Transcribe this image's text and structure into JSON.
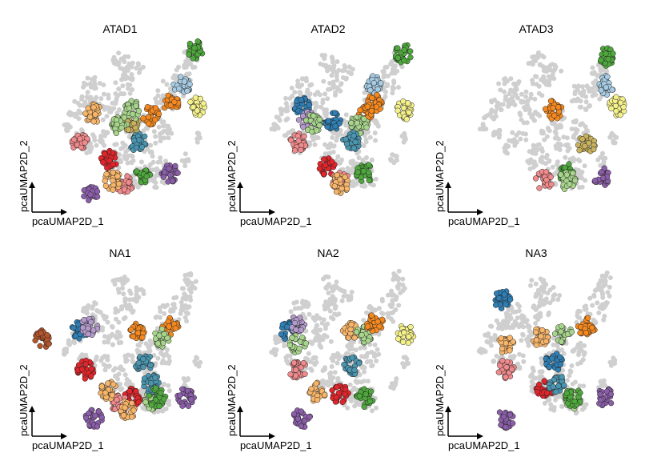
{
  "figure": {
    "type": "scatter",
    "embedding": "pcaUMAP2D",
    "xlabel": "pcaUMAP2D_1",
    "ylabel": "pcaUMAP2D_2",
    "background_color": "#cfcfcf",
    "grid": false,
    "legend": "none"
  },
  "palette": {
    "green": "#4fa83d",
    "light_green": "#a8d58c",
    "blue": "#2f7fb5",
    "light_blue": "#a6cbe3",
    "orange": "#f5891f",
    "light_orange": "#f7b56a",
    "red": "#e0252b",
    "pink": "#f08a8c",
    "purple": "#8a5ea8",
    "lavender": "#b49acb",
    "olive": "#c8b25e",
    "teal": "#4a95b0",
    "yellow": "#f4f08a",
    "brown": "#b5552c"
  },
  "chart_data": [
    {
      "type": "scatter",
      "title": "ATAD1",
      "xlabel": "pcaUMAP2D_1",
      "ylabel": "pcaUMAP2D_2",
      "highlight_groups": [
        {
          "color": "light_blue",
          "x": [
            0.78
          ],
          "y": [
            0.72
          ]
        },
        {
          "color": "green",
          "x": [
            0.85,
            0.58
          ],
          "y": [
            0.92,
            0.22
          ]
        },
        {
          "color": "orange",
          "x": [
            0.62,
            0.72
          ],
          "y": [
            0.55,
            0.62
          ]
        },
        {
          "color": "olive",
          "x": [
            0.52
          ],
          "y": [
            0.5
          ]
        },
        {
          "color": "light_green",
          "x": [
            0.52,
            0.45
          ],
          "y": [
            0.58,
            0.5
          ]
        },
        {
          "color": "pink",
          "x": [
            0.25,
            0.48
          ],
          "y": [
            0.4,
            0.16
          ]
        },
        {
          "color": "red",
          "x": [
            0.4
          ],
          "y": [
            0.3
          ]
        },
        {
          "color": "light_orange",
          "x": [
            0.42,
            0.32
          ],
          "y": [
            0.18,
            0.56
          ]
        },
        {
          "color": "teal",
          "x": [
            0.55
          ],
          "y": [
            0.4
          ]
        },
        {
          "color": "purple",
          "x": [
            0.72,
            0.3
          ],
          "y": [
            0.22,
            0.1
          ]
        },
        {
          "color": "yellow",
          "x": [
            0.86
          ],
          "y": [
            0.6
          ]
        }
      ]
    },
    {
      "type": "scatter",
      "title": "ATAD2",
      "xlabel": "pcaUMAP2D_1",
      "ylabel": "pcaUMAP2D_2",
      "highlight_groups": [
        {
          "color": "light_blue",
          "x": [
            0.7
          ],
          "y": [
            0.72
          ]
        },
        {
          "color": "orange",
          "x": [
            0.65,
            0.7
          ],
          "y": [
            0.56,
            0.62
          ]
        },
        {
          "color": "blue",
          "x": [
            0.32,
            0.48
          ],
          "y": [
            0.6,
            0.52
          ]
        },
        {
          "color": "lavender",
          "x": [
            0.35
          ],
          "y": [
            0.52
          ]
        },
        {
          "color": "light_green",
          "x": [
            0.38,
            0.62
          ],
          "y": [
            0.5,
            0.5
          ]
        },
        {
          "color": "green",
          "x": [
            0.65,
            0.85
          ],
          "y": [
            0.22,
            0.9
          ]
        },
        {
          "color": "red",
          "x": [
            0.45
          ],
          "y": [
            0.26
          ]
        },
        {
          "color": "pink",
          "x": [
            0.3,
            0.52
          ],
          "y": [
            0.4,
            0.18
          ]
        },
        {
          "color": "teal",
          "x": [
            0.58
          ],
          "y": [
            0.4
          ]
        },
        {
          "color": "light_orange",
          "x": [
            0.52
          ],
          "y": [
            0.16
          ]
        },
        {
          "color": "yellow",
          "x": [
            0.86
          ],
          "y": [
            0.58
          ]
        }
      ]
    },
    {
      "type": "scatter",
      "title": "ATAD3",
      "xlabel": "pcaUMAP2D_1",
      "ylabel": "pcaUMAP2D_2",
      "highlight_groups": [
        {
          "color": "light_blue",
          "x": [
            0.82
          ],
          "y": [
            0.72
          ]
        },
        {
          "color": "green",
          "x": [
            0.82,
            0.62
          ],
          "y": [
            0.88,
            0.22
          ]
        },
        {
          "color": "olive",
          "x": [
            0.72
          ],
          "y": [
            0.38
          ]
        },
        {
          "color": "pink",
          "x": [
            0.5
          ],
          "y": [
            0.18
          ]
        },
        {
          "color": "light_green",
          "x": [
            0.62
          ],
          "y": [
            0.18
          ]
        },
        {
          "color": "orange",
          "x": [
            0.55
          ],
          "y": [
            0.58
          ]
        },
        {
          "color": "purple",
          "x": [
            0.8
          ],
          "y": [
            0.2
          ]
        },
        {
          "color": "yellow",
          "x": [
            0.88
          ],
          "y": [
            0.6
          ]
        }
      ]
    },
    {
      "type": "scatter",
      "title": "NA1",
      "xlabel": "pcaUMAP2D_1",
      "ylabel": "pcaUMAP2D_2",
      "highlight_groups": [
        {
          "color": "blue",
          "x": [
            0.25
          ],
          "y": [
            0.6
          ]
        },
        {
          "color": "lavender",
          "x": [
            0.3
          ],
          "y": [
            0.62
          ]
        },
        {
          "color": "orange",
          "x": [
            0.55,
            0.72
          ],
          "y": [
            0.6,
            0.62
          ]
        },
        {
          "color": "light_green",
          "x": [
            0.68,
            0.62
          ],
          "y": [
            0.56,
            0.2
          ]
        },
        {
          "color": "teal",
          "x": [
            0.58,
            0.62
          ],
          "y": [
            0.42,
            0.3
          ]
        },
        {
          "color": "red",
          "x": [
            0.28,
            0.52
          ],
          "y": [
            0.38,
            0.22
          ]
        },
        {
          "color": "pink",
          "x": [
            0.46
          ],
          "y": [
            0.18
          ]
        },
        {
          "color": "green",
          "x": [
            0.65
          ],
          "y": [
            0.22
          ]
        },
        {
          "color": "light_orange",
          "x": [
            0.4,
            0.5
          ],
          "y": [
            0.26,
            0.15
          ]
        },
        {
          "color": "brown",
          "x": [
            0.05
          ],
          "y": [
            0.55
          ]
        },
        {
          "color": "purple",
          "x": [
            0.8,
            0.32
          ],
          "y": [
            0.22,
            0.1
          ]
        }
      ]
    },
    {
      "type": "scatter",
      "title": "NA2",
      "xlabel": "pcaUMAP2D_1",
      "ylabel": "pcaUMAP2D_2",
      "highlight_groups": [
        {
          "color": "blue",
          "x": [
            0.25
          ],
          "y": [
            0.6
          ]
        },
        {
          "color": "lavender",
          "x": [
            0.3
          ],
          "y": [
            0.64
          ]
        },
        {
          "color": "light_orange",
          "x": [
            0.58,
            0.4
          ],
          "y": [
            0.6,
            0.25
          ]
        },
        {
          "color": "light_green",
          "x": [
            0.65,
            0.3
          ],
          "y": [
            0.58,
            0.52
          ]
        },
        {
          "color": "teal",
          "x": [
            0.58
          ],
          "y": [
            0.4
          ]
        },
        {
          "color": "pink",
          "x": [
            0.3
          ],
          "y": [
            0.38
          ]
        },
        {
          "color": "red",
          "x": [
            0.52
          ],
          "y": [
            0.24
          ]
        },
        {
          "color": "green",
          "x": [
            0.65
          ],
          "y": [
            0.22
          ]
        },
        {
          "color": "orange",
          "x": [
            0.7
          ],
          "y": [
            0.64
          ]
        },
        {
          "color": "yellow",
          "x": [
            0.86
          ],
          "y": [
            0.58
          ]
        },
        {
          "color": "purple",
          "x": [
            0.32
          ],
          "y": [
            0.1
          ]
        }
      ]
    },
    {
      "type": "scatter",
      "title": "NA3",
      "xlabel": "pcaUMAP2D_1",
      "ylabel": "pcaUMAP2D_2",
      "highlight_groups": [
        {
          "color": "blue",
          "x": [
            0.28,
            0.55
          ],
          "y": [
            0.78,
            0.42
          ]
        },
        {
          "color": "light_green",
          "x": [
            0.6,
            0.65
          ],
          "y": [
            0.58,
            0.2
          ]
        },
        {
          "color": "orange",
          "x": [
            0.72
          ],
          "y": [
            0.62
          ]
        },
        {
          "color": "light_orange",
          "x": [
            0.48,
            0.3
          ],
          "y": [
            0.56,
            0.52
          ]
        },
        {
          "color": "red",
          "x": [
            0.5
          ],
          "y": [
            0.26
          ]
        },
        {
          "color": "pink",
          "x": [
            0.3
          ],
          "y": [
            0.38
          ]
        },
        {
          "color": "green",
          "x": [
            0.65
          ],
          "y": [
            0.22
          ]
        },
        {
          "color": "teal",
          "x": [
            0.56
          ],
          "y": [
            0.3
          ]
        },
        {
          "color": "purple",
          "x": [
            0.82,
            0.3
          ],
          "y": [
            0.22,
            0.1
          ]
        }
      ]
    }
  ]
}
